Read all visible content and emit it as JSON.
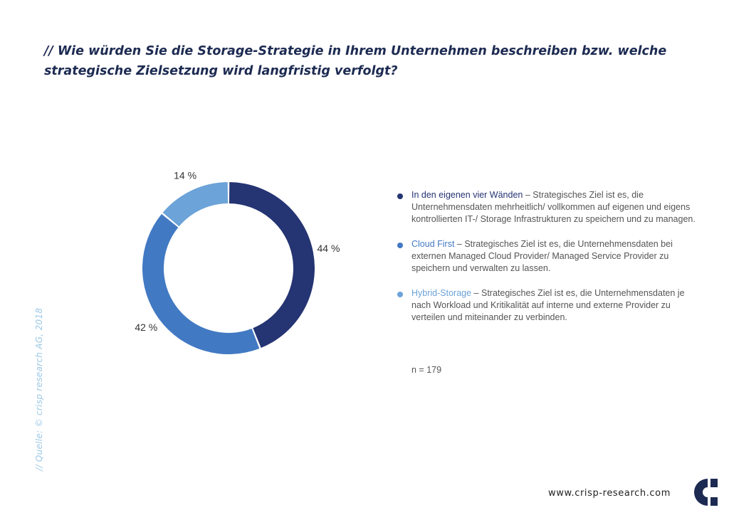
{
  "title": "// Wie würden Sie die Storage-Strategie in Ihrem Unternehmen beschreiben bzw. welche strategische Zielsetzung wird langfristig verfolgt?",
  "chart_data": {
    "type": "pie",
    "variant": "donut",
    "categories": [
      "In den eigenen vier Wänden",
      "Cloud First",
      "Hybrid-Storage"
    ],
    "values": [
      44,
      42,
      14
    ],
    "labels": [
      "44 %",
      "42 %",
      "14 %"
    ],
    "colors": [
      "#253472",
      "#4279c3",
      "#6ca3d8"
    ],
    "unit": "%"
  },
  "legend": {
    "items": [
      {
        "name": "In den eigenen vier Wänden",
        "description": " – Strategisches Ziel ist es, die Unternehmensdaten mehrheitlich/ vollkommen auf  eigenen und eigens kontrollierten IT-/ Storage Infrastrukturen  zu speichern und zu managen.",
        "color": "#253472"
      },
      {
        "name": "Cloud First",
        "description": " – Strategisches Ziel ist es, die Unternehmensdaten  bei externen Managed Cloud Provider/ Managed Service Provider zu speichern und verwalten zu lassen.",
        "color": "#4279c3"
      },
      {
        "name": "Hybrid-Storage",
        "description": " – Strategisches Ziel ist es, die Unternehmensdaten je nach Workload und Kritikalität auf interne und externe Provider zu verteilen und miteinander zu verbinden.",
        "color": "#6ca3d8"
      }
    ]
  },
  "sample_size": "n = 179",
  "source": "// Quelle: © crisp research AG, 2018",
  "footer": {
    "url": "www.crisp-research.com",
    "logo_icon": "crisp-research-logo-icon",
    "logo_color": "#1d2b52"
  }
}
